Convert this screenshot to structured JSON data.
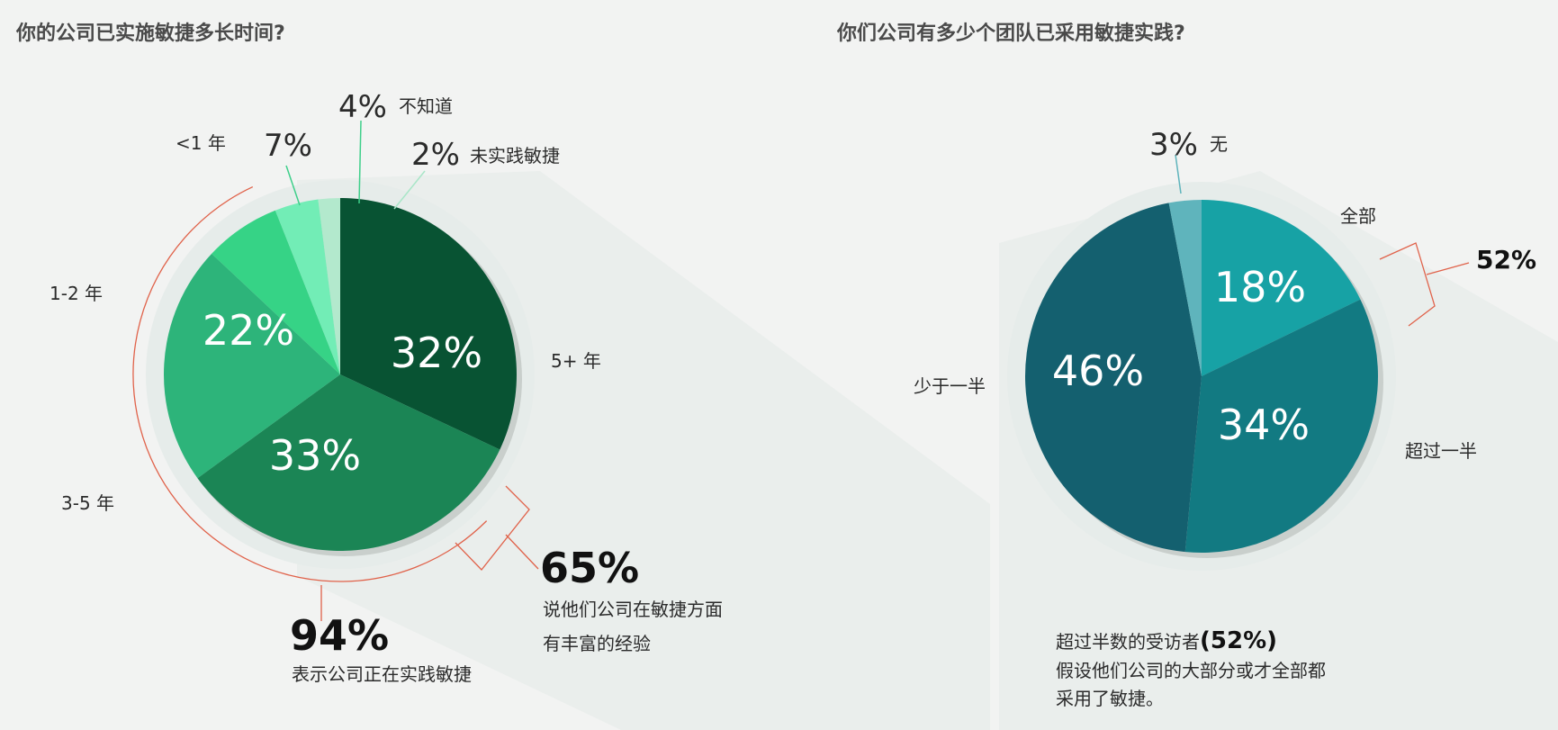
{
  "chart_data": [
    {
      "type": "pie",
      "title": "你的公司已实施敏捷多长时间?",
      "slices": [
        {
          "label": "5+ 年",
          "value": 32,
          "value_label": "32%",
          "color": "#085333"
        },
        {
          "label": "3-5 年",
          "value": 33,
          "value_label": "33%",
          "color": "#1b8555"
        },
        {
          "label": "1-2 年",
          "value": 22,
          "value_label": "22%",
          "color": "#2db47a"
        },
        {
          "label": "<1 年",
          "value": 7,
          "value_label": "7%",
          "color": "#36d386"
        },
        {
          "label": "不知道",
          "value": 4,
          "value_label": "4%",
          "color": "#72edb6"
        },
        {
          "label": "未实践敏捷",
          "value": 2,
          "value_label": "2%",
          "color": "#b3e9cd"
        }
      ],
      "annotations": [
        {
          "value": "94%",
          "text": "表示公司正在实践敏捷"
        },
        {
          "value": "65%",
          "lines": [
            "说他们公司在敏捷方面",
            "有丰富的经验"
          ]
        }
      ]
    },
    {
      "type": "pie",
      "title": "你们公司有多少个团队已采用敏捷实践?",
      "slices": [
        {
          "label": "全部",
          "value": 18,
          "value_label": "18%",
          "color": "#17a2a5"
        },
        {
          "label": "超过一半",
          "value": 34,
          "value_label": "34%",
          "color": "#127a82"
        },
        {
          "label": "少于一半",
          "value": 46,
          "value_label": "46%",
          "color": "#14606f"
        },
        {
          "label": "无",
          "value": 3,
          "value_label": "3%",
          "color": "#5fb4bc"
        }
      ],
      "annotations": [
        {
          "value": "52%"
        },
        {
          "value": "(52%)",
          "lead": "超过半数的受访者",
          "lines": [
            "假设他们公司的大部分或才全部都",
            "采用了敏捷。"
          ]
        }
      ]
    }
  ],
  "colors": {
    "bracket": "#e0624a",
    "ring": "#e6ecea",
    "bg_shape": "#eaeeec"
  }
}
